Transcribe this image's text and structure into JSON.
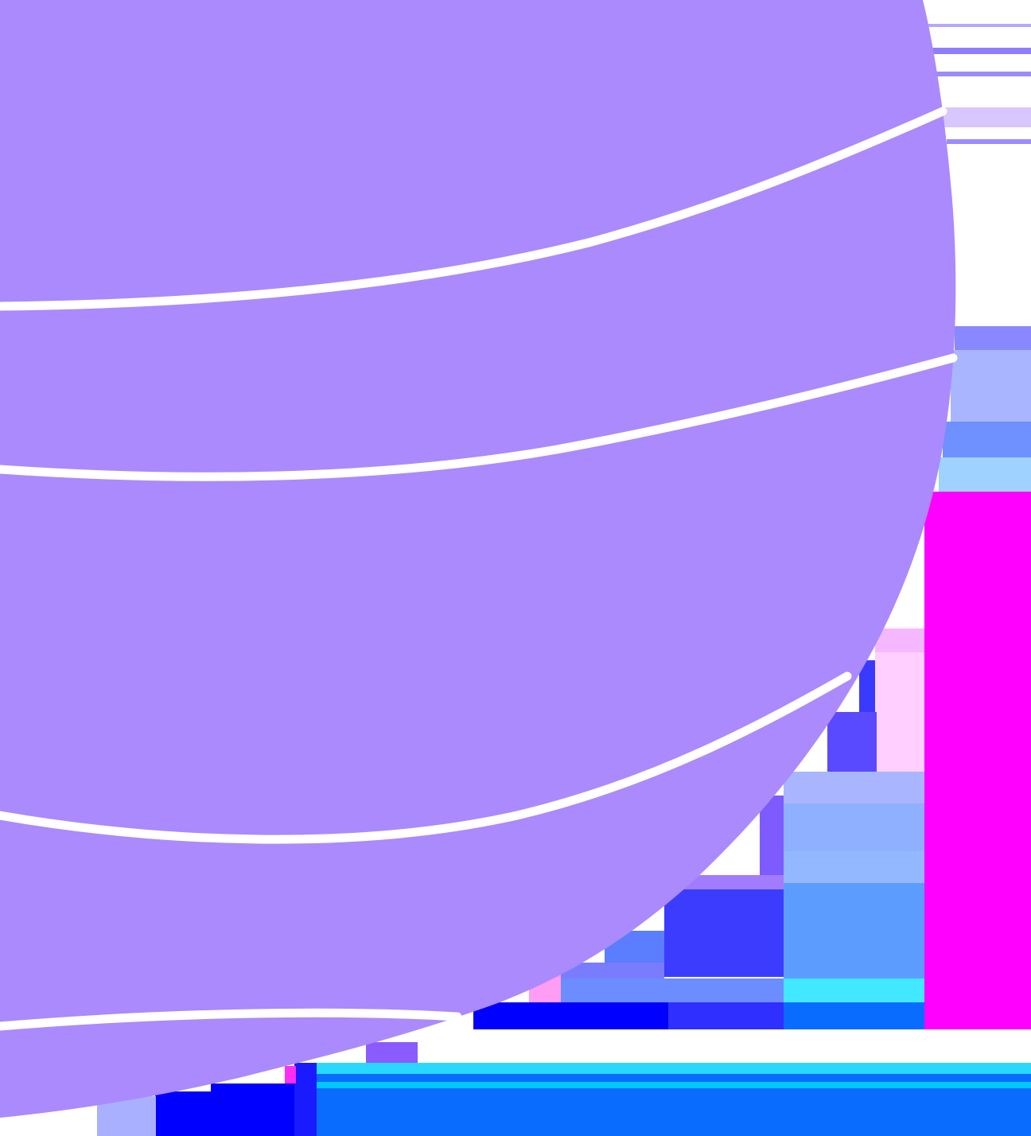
{
  "scene": {
    "description_free": true,
    "palette": {
      "globe": "#aa8afc",
      "stripe": "#ffffff",
      "magenta": "#ff00ff",
      "blue_bright": "#0a6cff",
      "blue_deep": "#0000ff",
      "indigo": "#5a4aff",
      "periwinkle": "#a9b6ff",
      "cyan": "#41e8ff",
      "light_blue": "#8fb6ff",
      "lilac": "#d7c6ff"
    }
  }
}
